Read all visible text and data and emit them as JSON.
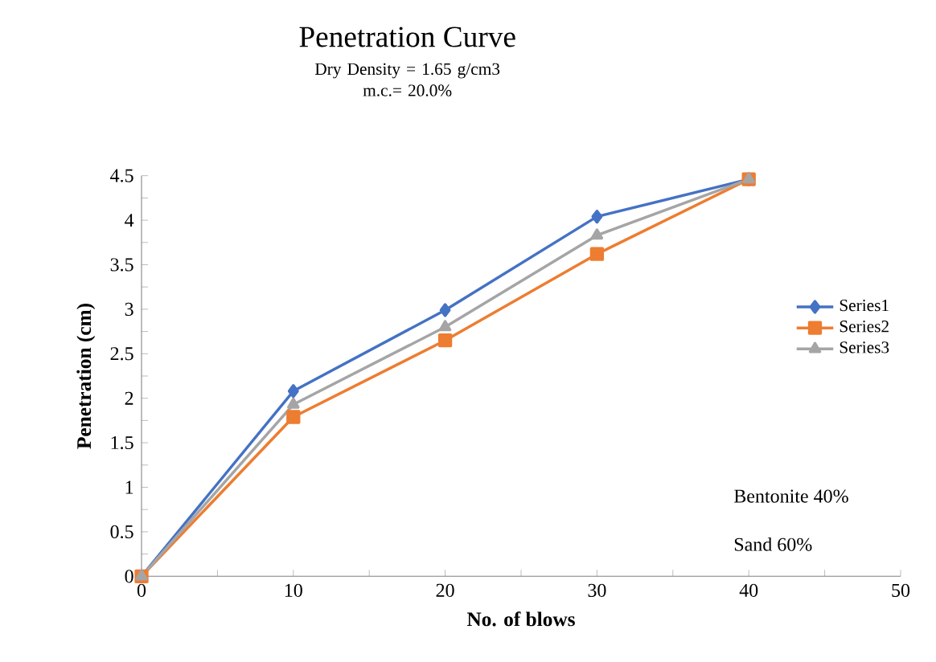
{
  "chart_data": {
    "type": "line",
    "title": "Penetration Curve",
    "subtitle": "Dry Density = 1.65 g/cm3\nm.c.= 20.0%",
    "xlabel": "No. of blows",
    "ylabel": "Penetration (cm)",
    "x": [
      0,
      10,
      20,
      30,
      40
    ],
    "series": [
      {
        "name": "Series1",
        "color": "#4472c4",
        "marker": "diamond",
        "values": [
          0,
          2.08,
          2.99,
          4.04,
          4.46
        ]
      },
      {
        "name": "Series2",
        "color": "#ed7d31",
        "marker": "square",
        "values": [
          0,
          1.79,
          2.65,
          3.62,
          4.46
        ]
      },
      {
        "name": "Series3",
        "color": "#a5a5a5",
        "marker": "triangle",
        "values": [
          0,
          1.93,
          2.8,
          3.83,
          4.46
        ]
      }
    ],
    "xlim": [
      0,
      50
    ],
    "xticks": [
      0,
      10,
      20,
      30,
      40,
      50
    ],
    "ylim": [
      0,
      4.5
    ],
    "yticks": [
      0,
      0.5,
      1,
      1.5,
      2,
      2.5,
      3,
      3.5,
      4,
      4.5
    ],
    "annotations": [
      "Bentonite 40%",
      "Sand        60%"
    ],
    "legend": "right",
    "grid": false
  }
}
